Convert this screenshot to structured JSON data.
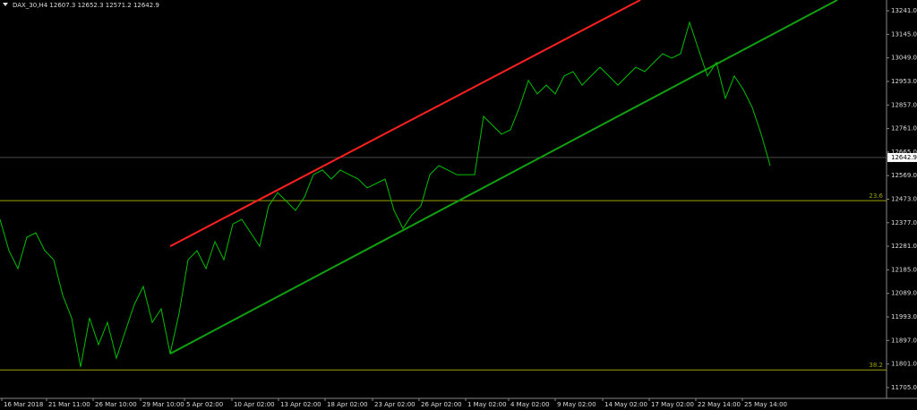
{
  "chart_data": {
    "type": "line",
    "title": "DAX_30,H4  12607.3 12652.3 12571.2 12642.9",
    "xlim": [
      0,
      99
    ],
    "ylim": [
      11661,
      13285
    ],
    "yticks": [
      {
        "value": 13241,
        "label": "13241.0"
      },
      {
        "value": 13145,
        "label": "13145.0"
      },
      {
        "value": 13049,
        "label": "13049.0"
      },
      {
        "value": 12953,
        "label": "12953.0"
      },
      {
        "value": 12857,
        "label": "12857.0"
      },
      {
        "value": 12761,
        "label": "12761.0"
      },
      {
        "value": 12665,
        "label": "12665.0"
      },
      {
        "value": 12569,
        "label": "12569.0"
      },
      {
        "value": 12473,
        "label": "12473.0"
      },
      {
        "value": 12377,
        "label": "12377.0"
      },
      {
        "value": 12281,
        "label": "12281.0"
      },
      {
        "value": 12185,
        "label": "12185.0"
      },
      {
        "value": 12089,
        "label": "12089.0"
      },
      {
        "value": 11993,
        "label": "11993.0"
      },
      {
        "value": 11897,
        "label": "11897.0"
      },
      {
        "value": 11801,
        "label": "11801.0"
      },
      {
        "value": 11705,
        "label": "11705.0"
      }
    ],
    "xticks": [
      {
        "value": 0.2,
        "label": "16 Mar 2018"
      },
      {
        "value": 5.2,
        "label": "21 Mar 11:00"
      },
      {
        "value": 10.4,
        "label": "26 Mar 10:00"
      },
      {
        "value": 15.7,
        "label": "29 Mar 10:00"
      },
      {
        "value": 20.6,
        "label": "5 Apr 02:00"
      },
      {
        "value": 25.9,
        "label": "10 Apr 02:00"
      },
      {
        "value": 31.1,
        "label": "13 Apr 02:00"
      },
      {
        "value": 36.3,
        "label": "18 Apr 02:00"
      },
      {
        "value": 41.6,
        "label": "23 Apr 02:00"
      },
      {
        "value": 46.8,
        "label": "26 Apr 02:00"
      },
      {
        "value": 52,
        "label": "1 May 02:00"
      },
      {
        "value": 56.8,
        "label": "4 May 02:00"
      },
      {
        "value": 62,
        "label": "9 May 02:00"
      },
      {
        "value": 67.3,
        "label": "14 May 02:00"
      },
      {
        "value": 72.5,
        "label": "17 May 02:00"
      },
      {
        "value": 77.7,
        "label": "22 May 14:00"
      },
      {
        "value": 82.9,
        "label": "25 May 14:00"
      }
    ],
    "series": [
      {
        "color": "#00c000",
        "x": [
          0,
          1,
          2,
          3,
          4,
          5,
          6,
          7,
          8,
          9,
          10,
          11,
          12,
          13,
          14,
          15,
          16,
          17,
          18,
          19,
          20,
          21,
          22,
          23,
          24,
          25,
          26,
          27,
          28,
          29,
          30,
          31,
          32,
          33,
          34,
          35,
          36,
          37,
          38,
          39,
          40,
          41,
          42,
          43,
          44,
          45,
          46,
          47,
          48,
          49,
          50,
          51,
          52,
          53,
          54,
          55,
          56,
          57,
          58,
          59,
          60,
          61,
          62,
          63,
          64,
          65,
          66,
          67,
          68,
          69,
          70,
          71,
          72,
          73,
          74,
          75,
          76,
          77,
          78,
          79,
          80,
          81,
          82,
          83,
          84,
          85,
          86
        ],
        "values": [
          12391,
          12263,
          12190,
          12318,
          12336,
          12263,
          12226,
          12081,
          11989,
          11789,
          11989,
          11880,
          11971,
          11825,
          11935,
          12044,
          12117,
          11971,
          12026,
          11843,
          12008,
          12226,
          12263,
          12190,
          12300,
          12226,
          12372,
          12391,
          12336,
          12281,
          12445,
          12500,
          12464,
          12427,
          12482,
          12573,
          12592,
          12555,
          12592,
          12573,
          12555,
          12519,
          12537,
          12555,
          12427,
          12354,
          12409,
          12445,
          12573,
          12610,
          12592,
          12573,
          12573,
          12573,
          12811,
          12774,
          12738,
          12756,
          12847,
          12957,
          12902,
          12938,
          12902,
          12975,
          12993,
          12938,
          12975,
          13011,
          12975,
          12938,
          12975,
          13011,
          12993,
          13030,
          13066,
          13048,
          13066,
          13194,
          13084,
          12975,
          13030,
          12884,
          12975,
          12920,
          12847,
          12738,
          12610
        ]
      }
    ],
    "channel_upper": {
      "color": "#ff2020",
      "x": [
        19,
        71.5
      ],
      "values": [
        12281,
        13285
      ]
    },
    "channel_lower": {
      "color": "#10a010",
      "x": [
        19,
        93.5
      ],
      "values": [
        11843,
        13285
      ]
    },
    "levels": [
      {
        "label": "23.6",
        "value": 12467,
        "color": "#a0a000"
      },
      {
        "label": "38.2",
        "value": 11777,
        "color": "#a0a000"
      }
    ],
    "current_price": {
      "value": 12642.9,
      "label": "12642.9"
    }
  }
}
